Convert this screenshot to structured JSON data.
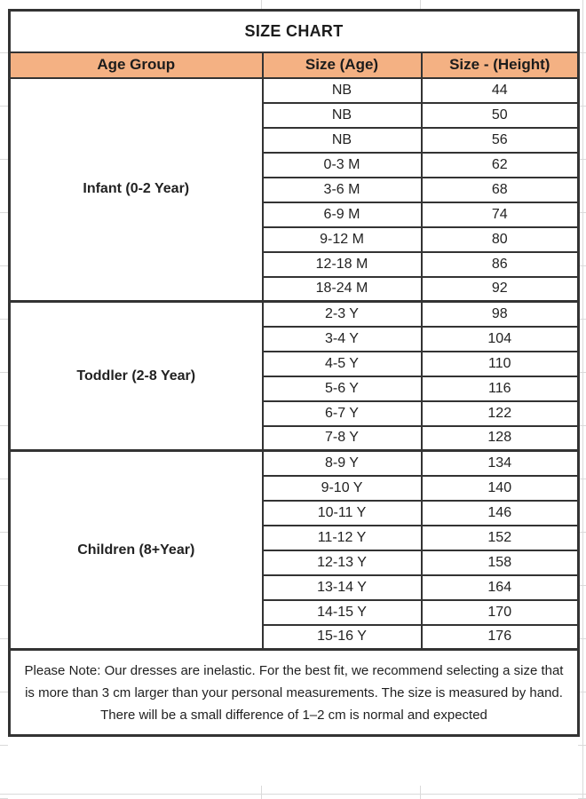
{
  "title": "SIZE CHART",
  "columns": [
    {
      "label": "Age Group"
    },
    {
      "label": "Size (Age)"
    },
    {
      "label": "Size - (Height)"
    }
  ],
  "groups": [
    {
      "label": "Infant (0-2 Year)",
      "rows": [
        {
          "size": "NB",
          "height": "44"
        },
        {
          "size": "NB",
          "height": "50"
        },
        {
          "size": "NB",
          "height": "56"
        },
        {
          "size": "0-3 M",
          "height": "62"
        },
        {
          "size": "3-6 M",
          "height": "68"
        },
        {
          "size": "6-9 M",
          "height": "74"
        },
        {
          "size": "9-12 M",
          "height": "80"
        },
        {
          "size": "12-18 M",
          "height": "86"
        },
        {
          "size": "18-24 M",
          "height": "92"
        }
      ]
    },
    {
      "label": "Toddler (2-8 Year)",
      "rows": [
        {
          "size": "2-3 Y",
          "height": "98"
        },
        {
          "size": "3-4 Y",
          "height": "104"
        },
        {
          "size": "4-5 Y",
          "height": "110"
        },
        {
          "size": "5-6 Y",
          "height": "116"
        },
        {
          "size": "6-7 Y",
          "height": "122"
        },
        {
          "size": "7-8 Y",
          "height": "128"
        }
      ]
    },
    {
      "label": "Children (8+Year)",
      "rows": [
        {
          "size": "8-9 Y",
          "height": "134"
        },
        {
          "size": "9-10 Y",
          "height": "140"
        },
        {
          "size": "10-11 Y",
          "height": "146"
        },
        {
          "size": "11-12 Y",
          "height": "152"
        },
        {
          "size": "12-13 Y",
          "height": "158"
        },
        {
          "size": "13-14 Y",
          "height": "164"
        },
        {
          "size": "14-15 Y",
          "height": "170"
        },
        {
          "size": "15-16 Y",
          "height": "176"
        }
      ]
    }
  ],
  "note": "Please Note: Our dresses are inelastic. For the best fit, we recommend selecting a size that is more than 3 cm larger than your personal measurements. The size is measured by hand. There will be a small difference of 1–2 cm is normal and expected",
  "colors": {
    "header_bg": "#F4B183",
    "border": "#333333"
  }
}
